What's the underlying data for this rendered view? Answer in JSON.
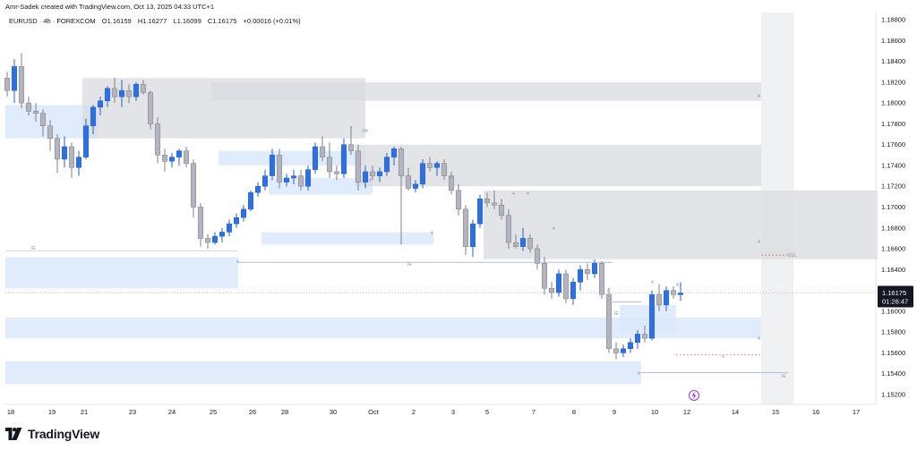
{
  "header": {
    "created_line": "Amr-Sadek created with TradingView.com, Oct 13, 2025 04:33 UTC+1",
    "symbol_line": "EURUSD · 4h · FOREXCOM",
    "ohlc": {
      "open": "O1.16159",
      "high": "H1.16277",
      "low": "L1.16099",
      "close": "C1.16175",
      "change": "+0.00016 (+0.01%)"
    }
  },
  "price_tag": {
    "price": "1.16175",
    "countdown": "01:26:47"
  },
  "brand": {
    "name": "TradingView"
  },
  "colors": {
    "bull": "#2f6fde",
    "bear": "#b2b5be",
    "zone_blue": "#dbe7fb",
    "zone_gray": "#d9dbe0",
    "price_tag_bg": "#131722"
  },
  "icons": {
    "alert": "lightning-icon",
    "logo": "tradingview-logo-icon"
  },
  "chart_data": {
    "type": "candlestick",
    "symbol": "EURUSD",
    "interval": "4h",
    "exchange": "FOREXCOM",
    "ylim": [
      1.151,
      1.189
    ],
    "y_ticks": [
      "1.18800",
      "1.18600",
      "1.18400",
      "1.18200",
      "1.18000",
      "1.17800",
      "1.17600",
      "1.17400",
      "1.17200",
      "1.17000",
      "1.16800",
      "1.16600",
      "1.16400",
      "1.16200",
      "1.16000",
      "1.15800",
      "1.15600",
      "1.15400",
      "1.15200"
    ],
    "x_ticks": [
      "18",
      "19",
      "21",
      "23",
      "24",
      "25",
      "26",
      "28",
      "30",
      "Oct",
      "2",
      "3",
      "5",
      "7",
      "8",
      "9",
      "10",
      "12",
      "14",
      "15",
      "16",
      "17"
    ],
    "last_price": 1.16175,
    "candles": [
      [
        1.1824,
        1.183,
        1.1806,
        1.1812
      ],
      [
        1.1812,
        1.1842,
        1.18,
        1.1835
      ],
      [
        1.1835,
        1.1848,
        1.1795,
        1.18
      ],
      [
        1.18,
        1.1806,
        1.1788,
        1.1792
      ],
      [
        1.1792,
        1.18,
        1.1782,
        1.179
      ],
      [
        1.179,
        1.1794,
        1.1768,
        1.1778
      ],
      [
        1.1778,
        1.1784,
        1.1754,
        1.1766
      ],
      [
        1.1766,
        1.177,
        1.1733,
        1.1746
      ],
      [
        1.1746,
        1.1768,
        1.1738,
        1.1758
      ],
      [
        1.1758,
        1.1762,
        1.1728,
        1.1738
      ],
      [
        1.1738,
        1.1754,
        1.173,
        1.1748
      ],
      [
        1.1748,
        1.1785,
        1.1746,
        1.1778
      ],
      [
        1.1778,
        1.1798,
        1.177,
        1.1796
      ],
      [
        1.1796,
        1.1806,
        1.1788,
        1.1802
      ],
      [
        1.1802,
        1.1816,
        1.1796,
        1.1814
      ],
      [
        1.1814,
        1.1824,
        1.18,
        1.1806
      ],
      [
        1.1806,
        1.1822,
        1.1796,
        1.1812
      ],
      [
        1.1812,
        1.1818,
        1.18,
        1.1806
      ],
      [
        1.1806,
        1.182,
        1.1802,
        1.1818
      ],
      [
        1.1818,
        1.1822,
        1.1808,
        1.181
      ],
      [
        1.181,
        1.1812,
        1.1775,
        1.178
      ],
      [
        1.178,
        1.1786,
        1.1742,
        1.175
      ],
      [
        1.175,
        1.1756,
        1.1734,
        1.1744
      ],
      [
        1.1744,
        1.1752,
        1.1738,
        1.1748
      ],
      [
        1.1748,
        1.1756,
        1.174,
        1.1754
      ],
      [
        1.1754,
        1.1758,
        1.1738,
        1.1742
      ],
      [
        1.1742,
        1.1746,
        1.169,
        1.17
      ],
      [
        1.17,
        1.1704,
        1.1662,
        1.167
      ],
      [
        1.167,
        1.1674,
        1.166,
        1.1666
      ],
      [
        1.1666,
        1.1676,
        1.1664,
        1.1672
      ],
      [
        1.1672,
        1.168,
        1.1666,
        1.1676
      ],
      [
        1.1676,
        1.1688,
        1.1672,
        1.1684
      ],
      [
        1.1684,
        1.1694,
        1.168,
        1.169
      ],
      [
        1.169,
        1.1702,
        1.1686,
        1.1698
      ],
      [
        1.1698,
        1.1716,
        1.1696,
        1.1714
      ],
      [
        1.1714,
        1.1724,
        1.171,
        1.172
      ],
      [
        1.172,
        1.1736,
        1.1716,
        1.173
      ],
      [
        1.173,
        1.1756,
        1.1726,
        1.175
      ],
      [
        1.175,
        1.1756,
        1.1718,
        1.1724
      ],
      [
        1.1724,
        1.1732,
        1.172,
        1.1728
      ],
      [
        1.1728,
        1.1736,
        1.1722,
        1.173
      ],
      [
        1.173,
        1.1736,
        1.1716,
        1.172
      ],
      [
        1.172,
        1.174,
        1.1716,
        1.1736
      ],
      [
        1.1736,
        1.1762,
        1.1732,
        1.1758
      ],
      [
        1.1758,
        1.1768,
        1.1744,
        1.1748
      ],
      [
        1.1748,
        1.1762,
        1.1728,
        1.1734
      ],
      [
        1.1734,
        1.174,
        1.1726,
        1.1732
      ],
      [
        1.1732,
        1.1766,
        1.1728,
        1.176
      ],
      [
        1.176,
        1.1778,
        1.175,
        1.1754
      ],
      [
        1.1754,
        1.176,
        1.1716,
        1.1724
      ],
      [
        1.1724,
        1.174,
        1.1718,
        1.1734
      ],
      [
        1.1734,
        1.174,
        1.1726,
        1.173
      ],
      [
        1.173,
        1.1738,
        1.1724,
        1.1734
      ],
      [
        1.1734,
        1.1752,
        1.173,
        1.1748
      ],
      [
        1.1748,
        1.1758,
        1.174,
        1.1756
      ],
      [
        1.1756,
        1.1758,
        1.1664,
        1.173
      ],
      [
        1.173,
        1.1738,
        1.1716,
        1.1718
      ],
      [
        1.1718,
        1.1726,
        1.1714,
        1.1722
      ],
      [
        1.1722,
        1.1746,
        1.1718,
        1.1742
      ],
      [
        1.1742,
        1.1748,
        1.1734,
        1.1738
      ],
      [
        1.1738,
        1.1744,
        1.173,
        1.1742
      ],
      [
        1.1742,
        1.1746,
        1.1726,
        1.173
      ],
      [
        1.173,
        1.1734,
        1.1712,
        1.1716
      ],
      [
        1.1716,
        1.1722,
        1.1692,
        1.1698
      ],
      [
        1.1698,
        1.1702,
        1.1654,
        1.1662
      ],
      [
        1.1662,
        1.1688,
        1.1652,
        1.1684
      ],
      [
        1.1684,
        1.1712,
        1.168,
        1.1708
      ],
      [
        1.1708,
        1.1714,
        1.17,
        1.1704
      ],
      [
        1.1704,
        1.1716,
        1.1698,
        1.1702
      ],
      [
        1.1702,
        1.1708,
        1.1688,
        1.1692
      ],
      [
        1.1692,
        1.1698,
        1.166,
        1.1666
      ],
      [
        1.1666,
        1.1674,
        1.166,
        1.1662
      ],
      [
        1.1662,
        1.168,
        1.1658,
        1.167
      ],
      [
        1.167,
        1.1674,
        1.1656,
        1.166
      ],
      [
        1.166,
        1.1664,
        1.164,
        1.1646
      ],
      [
        1.1646,
        1.1652,
        1.1616,
        1.1622
      ],
      [
        1.1622,
        1.1628,
        1.1612,
        1.1618
      ],
      [
        1.1618,
        1.164,
        1.1614,
        1.1636
      ],
      [
        1.1636,
        1.164,
        1.1608,
        1.1612
      ],
      [
        1.1612,
        1.1632,
        1.1606,
        1.1628
      ],
      [
        1.1628,
        1.1644,
        1.162,
        1.164
      ],
      [
        1.164,
        1.1646,
        1.163,
        1.1636
      ],
      [
        1.1636,
        1.165,
        1.1632,
        1.1646
      ],
      [
        1.1646,
        1.1648,
        1.1612,
        1.1616
      ],
      [
        1.1616,
        1.1622,
        1.156,
        1.1564
      ],
      [
        1.1564,
        1.157,
        1.1554,
        1.156
      ],
      [
        1.156,
        1.1568,
        1.1556,
        1.1564
      ],
      [
        1.1564,
        1.1574,
        1.156,
        1.157
      ],
      [
        1.157,
        1.1582,
        1.1564,
        1.1578
      ],
      [
        1.1578,
        1.1586,
        1.157,
        1.1574
      ],
      [
        1.1574,
        1.162,
        1.1572,
        1.1616
      ],
      [
        1.1616,
        1.1626,
        1.16,
        1.1606
      ],
      [
        1.1606,
        1.1624,
        1.16,
        1.162
      ],
      [
        1.162,
        1.1624,
        1.1612,
        1.1616
      ],
      [
        1.16159,
        1.16277,
        1.16099,
        1.16175
      ]
    ],
    "zones": [
      {
        "kind": "demand",
        "low": 1.1766,
        "high": 1.1798
      },
      {
        "kind": "supply",
        "low": 1.1766,
        "high": 1.1824
      },
      {
        "kind": "supply",
        "low": 1.1802,
        "high": 1.182
      },
      {
        "kind": "demand",
        "low": 1.174,
        "high": 1.1754
      },
      {
        "kind": "demand",
        "low": 1.1712,
        "high": 1.1728
      },
      {
        "kind": "demand",
        "low": 1.1664,
        "high": 1.1676
      },
      {
        "kind": "supply",
        "low": 1.172,
        "high": 1.176
      },
      {
        "kind": "demand",
        "low": 1.1622,
        "high": 1.1652
      },
      {
        "kind": "supply",
        "low": 1.165,
        "high": 1.1716
      },
      {
        "kind": "demand",
        "low": 1.1574,
        "high": 1.1594
      },
      {
        "kind": "demand",
        "low": 1.153,
        "high": 1.1552
      },
      {
        "kind": "demand",
        "low": 1.158,
        "high": 1.1606
      }
    ],
    "markers": [
      "4",
      "4",
      "4",
      "4",
      "4",
      "4",
      "4",
      "4",
      "4",
      "4",
      "4",
      "4",
      "D",
      "4",
      "4",
      "4",
      "4",
      "IE",
      "IE",
      "IE",
      "IE",
      "SSL"
    ],
    "grid": false,
    "legend": "top-left"
  }
}
